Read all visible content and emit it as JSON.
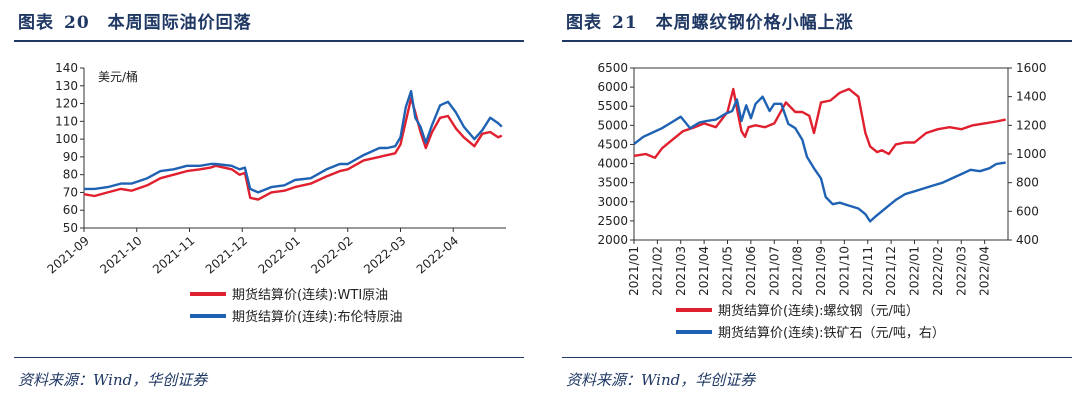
{
  "left": {
    "title_prefix": "图表",
    "title_num": "20",
    "title_text": "本周国际油价回落",
    "source": "资料来源：Wind，华创证券",
    "chart_data": {
      "type": "line",
      "ylabel": "美元/桶",
      "ylim": [
        50,
        140
      ],
      "yticks": [
        50,
        60,
        70,
        80,
        90,
        100,
        110,
        120,
        130,
        140
      ],
      "xticks": [
        "2021-09",
        "2021-10",
        "2021-11",
        "2021-12",
        "2022-01",
        "2022-02",
        "2022-03",
        "2022-04"
      ],
      "xrange": [
        0,
        8
      ],
      "series": [
        {
          "name": "期货结算价(连续):WTI原油",
          "color": "#e0202e",
          "x": [
            0,
            0.2,
            0.45,
            0.7,
            0.9,
            1.2,
            1.45,
            1.7,
            1.95,
            2.2,
            2.4,
            2.5,
            2.8,
            2.95,
            3.05,
            3.15,
            3.3,
            3.55,
            3.8,
            4.0,
            4.3,
            4.6,
            4.85,
            5.0,
            5.3,
            5.6,
            5.75,
            5.9,
            6.0,
            6.1,
            6.2,
            6.28,
            6.38,
            6.48,
            6.6,
            6.75,
            6.9,
            7.05,
            7.2,
            7.4,
            7.55,
            7.7,
            7.85,
            7.92
          ],
          "y": [
            69,
            68,
            70,
            72,
            71,
            74,
            78,
            80,
            82,
            83,
            84,
            85,
            83,
            80,
            81,
            67,
            66,
            70,
            71,
            73,
            75,
            79,
            82,
            83,
            88,
            90,
            91,
            92,
            97,
            110,
            123,
            115,
            104,
            95,
            104,
            112,
            113,
            106,
            101,
            96,
            103,
            104,
            101,
            102
          ]
        },
        {
          "name": "期货结算价(连续):布伦特原油",
          "color": "#1f62b4",
          "x": [
            0,
            0.2,
            0.45,
            0.7,
            0.9,
            1.2,
            1.45,
            1.7,
            1.95,
            2.2,
            2.4,
            2.5,
            2.8,
            2.95,
            3.05,
            3.15,
            3.3,
            3.55,
            3.8,
            4.0,
            4.3,
            4.6,
            4.85,
            5.0,
            5.3,
            5.6,
            5.75,
            5.9,
            6.0,
            6.1,
            6.2,
            6.28,
            6.38,
            6.48,
            6.6,
            6.75,
            6.9,
            7.05,
            7.2,
            7.4,
            7.55,
            7.7,
            7.85,
            7.92
          ],
          "y": [
            72,
            72,
            73,
            75,
            75,
            78,
            82,
            83,
            85,
            85,
            86,
            86,
            85,
            83,
            84,
            72,
            70,
            73,
            74,
            77,
            78,
            83,
            86,
            86,
            91,
            95,
            95,
            96,
            101,
            118,
            127,
            112,
            107,
            98,
            108,
            119,
            121,
            115,
            107,
            100,
            105,
            112,
            109,
            107
          ]
        }
      ]
    }
  },
  "right": {
    "title_prefix": "图表",
    "title_num": "21",
    "title_text": "本周螺纹钢价格小幅上涨",
    "source": "资料来源：Wind，华创证券",
    "chart_data": {
      "type": "line",
      "ylim": [
        2000,
        6500
      ],
      "yticks": [
        2000,
        2500,
        3000,
        3500,
        4000,
        4500,
        5000,
        5500,
        6000,
        6500
      ],
      "y2lim": [
        400,
        1600
      ],
      "y2ticks": [
        400,
        600,
        800,
        1000,
        1200,
        1400,
        1600
      ],
      "xticks": [
        "2021/01",
        "2021/02",
        "2021/03",
        "2021/04",
        "2021/05",
        "2021/06",
        "2021/07",
        "2021/08",
        "2021/09",
        "2021/10",
        "2021/11",
        "2021/12",
        "2022/01",
        "2022/02",
        "2022/03",
        "2022/04"
      ],
      "xrange": [
        0,
        16
      ],
      "series": [
        {
          "name": "期货结算价(连续):螺纹钢（元/吨）",
          "color": "#e0202e",
          "axis": "left",
          "x": [
            0,
            0.5,
            0.9,
            1.2,
            1.7,
            2.1,
            2.6,
            3.0,
            3.5,
            4.0,
            4.25,
            4.45,
            4.6,
            4.75,
            4.9,
            5.2,
            5.6,
            6.0,
            6.5,
            6.9,
            7.2,
            7.5,
            7.7,
            8.0,
            8.4,
            8.8,
            9.2,
            9.6,
            9.9,
            10.1,
            10.4,
            10.6,
            10.9,
            11.2,
            11.6,
            12.0,
            12.5,
            13.0,
            13.5,
            14.0,
            14.5,
            15.0,
            15.5,
            15.9
          ],
          "y": [
            4200,
            4250,
            4150,
            4400,
            4650,
            4850,
            4950,
            5050,
            4950,
            5350,
            5950,
            5300,
            4850,
            4700,
            4950,
            5000,
            4950,
            5050,
            5600,
            5350,
            5350,
            5250,
            4800,
            5600,
            5650,
            5850,
            5950,
            5750,
            4800,
            4450,
            4300,
            4350,
            4250,
            4500,
            4550,
            4550,
            4800,
            4900,
            4950,
            4900,
            5000,
            5050,
            5100,
            5150
          ]
        },
        {
          "name": "期货结算价(连续):铁矿石（元/吨，右）",
          "color": "#1f62b4",
          "axis": "right",
          "x": [
            0,
            0.4,
            0.8,
            1.2,
            1.6,
            2.0,
            2.4,
            2.8,
            3.1,
            3.5,
            3.9,
            4.2,
            4.4,
            4.6,
            4.8,
            5.0,
            5.2,
            5.5,
            5.8,
            6.0,
            6.3,
            6.6,
            6.9,
            7.2,
            7.4,
            7.7,
            8.0,
            8.2,
            8.5,
            8.8,
            9.2,
            9.6,
            9.9,
            10.1,
            10.3,
            10.6,
            10.9,
            11.2,
            11.6,
            12.0,
            12.4,
            12.8,
            13.2,
            13.6,
            14.0,
            14.4,
            14.8,
            15.2,
            15.5,
            15.9
          ],
          "y": [
            1070,
            1120,
            1150,
            1180,
            1220,
            1260,
            1180,
            1220,
            1230,
            1240,
            1280,
            1300,
            1380,
            1230,
            1340,
            1250,
            1350,
            1400,
            1300,
            1350,
            1350,
            1210,
            1180,
            1100,
            980,
            900,
            830,
            700,
            650,
            660,
            640,
            620,
            580,
            530,
            560,
            600,
            640,
            680,
            720,
            740,
            760,
            780,
            800,
            830,
            860,
            890,
            880,
            900,
            930,
            940
          ]
        }
      ]
    }
  }
}
